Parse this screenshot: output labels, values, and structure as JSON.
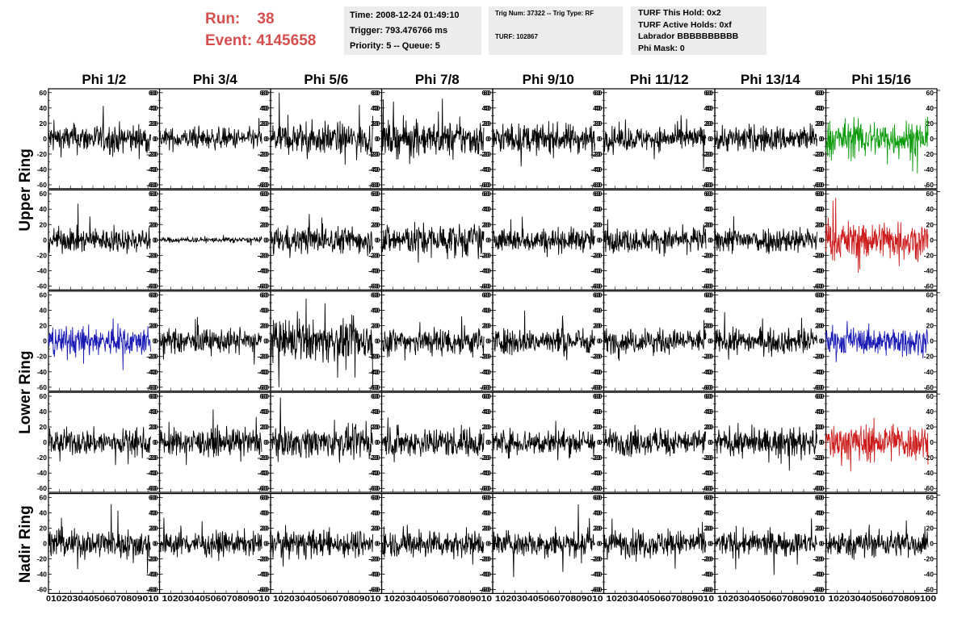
{
  "header": {
    "run_label": "Run:",
    "run_value": "38",
    "event_label": "Event:",
    "event_value": "4145658",
    "time": "Time: 2008-12-24 01:49:10",
    "trigger": "Trigger: 793.476766 ms",
    "priority_queue": "Priority: 5 -- Queue: 5",
    "trig_num_type": "Trig Num: 37322 -- Trig Type: RF",
    "turf": "TURF: 102867",
    "turf_this_hold": "TURF This Hold: 0x2",
    "turf_active_holds": "TURF Active Holds: 0xf",
    "labrador": "Labrador BBBBBBBBBB",
    "phi_mask": "Phi Mask: 0"
  },
  "colors": {
    "header_accent": "#d64f4f",
    "info_box_bg": "#ececec",
    "trace_default": "#000000",
    "trace_green": "#0a9a0a",
    "trace_red": "#cc1b1b",
    "trace_blue": "#1a1ab4"
  },
  "chart_data": {
    "type": "line",
    "layout": "grid of 5 rows x 8 columns of waveform panels",
    "columns": [
      "Phi 1/2",
      "Phi 3/4",
      "Phi 5/6",
      "Phi 7/8",
      "Phi 9/10",
      "Phi 11/12",
      "Phi 13/14",
      "Phi 15/16"
    ],
    "row_groups": [
      {
        "label": "Upper Ring",
        "rows": [
          0,
          1
        ]
      },
      {
        "label": "Lower Ring",
        "rows": [
          2,
          3
        ]
      },
      {
        "label": "Nadir Ring",
        "rows": [
          4
        ]
      }
    ],
    "xlim": [
      0,
      100
    ],
    "ylim": [
      -65,
      65
    ],
    "y_ticks": [
      -60,
      -40,
      -20,
      0,
      20,
      40,
      60
    ],
    "x_tick_labels": [
      "0",
      "10",
      "20",
      "30",
      "40",
      "50",
      "60",
      "70",
      "80",
      "90",
      "100"
    ],
    "x_axis_text": [
      "0",
      "10203040506070809010",
      "10203040506070809010",
      "10203040506070809010",
      "10203040506070809010",
      "10203040506070809010",
      "10203040506070809010",
      "10203040506070809010",
      "10203040506070809100"
    ],
    "n_samples": 260,
    "x_range": [
      0,
      92
    ],
    "amplitude_rms": [
      [
        11,
        8,
        12,
        13,
        11,
        9,
        10,
        14
      ],
      [
        9,
        2,
        10,
        12,
        9,
        9,
        10,
        14
      ],
      [
        11,
        9,
        15,
        11,
        10,
        9,
        9,
        10
      ],
      [
        10,
        10,
        11,
        11,
        10,
        10,
        10,
        14
      ],
      [
        11,
        9,
        10,
        10,
        10,
        10,
        9,
        10
      ]
    ],
    "trace_colors": [
      [
        "k",
        "k",
        "k",
        "k",
        "k",
        "k",
        "k",
        "green"
      ],
      [
        "k",
        "k",
        "k",
        "k",
        "k",
        "k",
        "k",
        "red"
      ],
      [
        "blue",
        "k",
        "k",
        "k",
        "k",
        "k",
        "k",
        "blue"
      ],
      [
        "k",
        "k",
        "k",
        "k",
        "k",
        "k",
        "k",
        "red"
      ],
      [
        "k",
        "k",
        "k",
        "k",
        "k",
        "k",
        "k",
        "k"
      ]
    ]
  }
}
